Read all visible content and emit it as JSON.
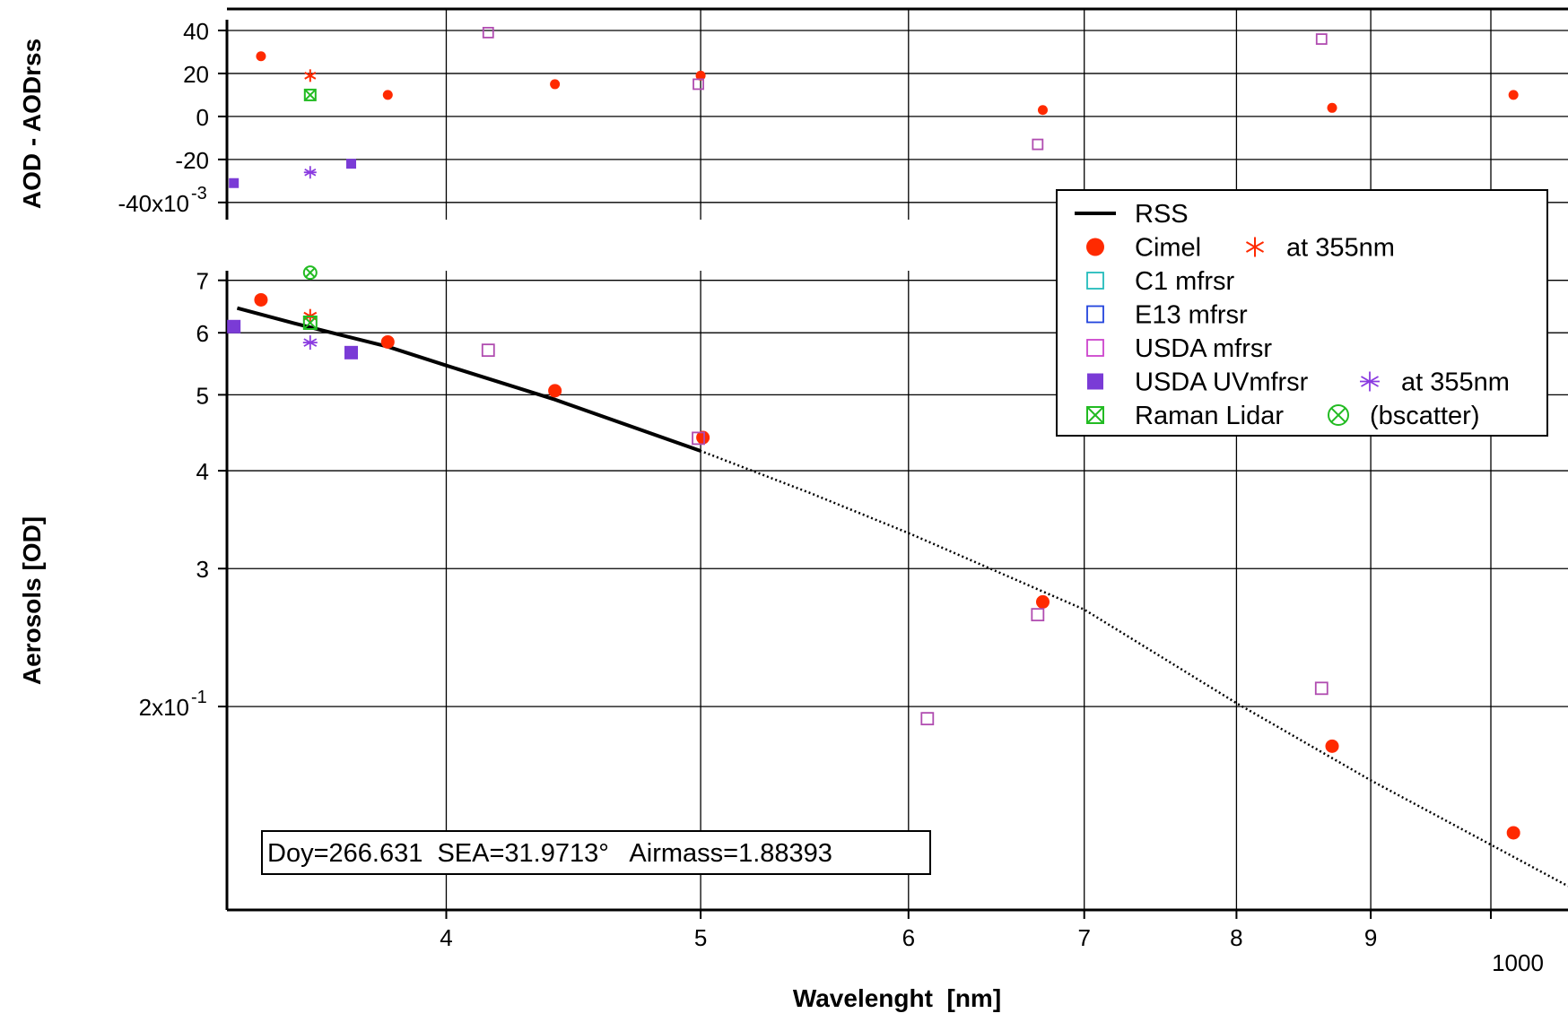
{
  "chart_data": {
    "type": "scatter",
    "x_scale": "log",
    "x_label": "Wavelenght  [nm]",
    "x_ticks": [
      {
        "value": 400,
        "label": "4"
      },
      {
        "value": 500,
        "label": "5"
      },
      {
        "value": 600,
        "label": "6"
      },
      {
        "value": 700,
        "label": "7"
      },
      {
        "value": 800,
        "label": "8"
      },
      {
        "value": 900,
        "label": "9"
      },
      {
        "value": 1000,
        "label": "1000"
      }
    ],
    "x_range": [
      330,
      1070
    ],
    "grid": true,
    "panels": [
      {
        "id": "residual",
        "y_label": "AOD - AODrss",
        "y_scale": "linear",
        "y_range": [
          -0.048,
          0.05
        ],
        "y_ticks": [
          {
            "value": 0.04,
            "label": "40"
          },
          {
            "value": 0.02,
            "label": "20"
          },
          {
            "value": 0,
            "label": "0"
          },
          {
            "value": -0.02,
            "label": "-20"
          },
          {
            "value": -0.04,
            "label": "-40x10",
            "sup": "-3"
          }
        ],
        "series": [
          {
            "name": "Cimel",
            "marker": "filled-circle",
            "color": "#ff2a00",
            "points": [
              [
                340,
                0.028
              ],
              [
                380,
                0.01
              ],
              [
                440,
                0.015
              ],
              [
                500,
                0.019
              ],
              [
                675,
                0.003
              ],
              [
                870,
                0.004
              ],
              [
                1020,
                0.01
              ]
            ]
          },
          {
            "name": "at 355nm",
            "marker": "asterisk",
            "color": "#ff2a00",
            "points": [
              [
                355,
                0.019
              ]
            ]
          },
          {
            "name": "USDA mfrsr",
            "marker": "open-square",
            "color": "#b04cb0",
            "points": [
              [
                415,
                0.039
              ],
              [
                499,
                0.015
              ],
              [
                672,
                -0.013
              ],
              [
                862,
                0.036
              ]
            ]
          },
          {
            "name": "USDA UVmfrsr",
            "marker": "filled-square",
            "color": "#7a3bd6",
            "points": [
              [
                332,
                -0.031
              ],
              [
                368,
                -0.022
              ]
            ]
          },
          {
            "name": "at 355nm",
            "marker": "star",
            "color": "#8a3be0",
            "points": [
              [
                355,
                -0.026
              ]
            ]
          },
          {
            "name": "Raman Lidar",
            "marker": "boxed-x",
            "color": "#22bb22",
            "points": [
              [
                355,
                0.01
              ]
            ]
          }
        ]
      },
      {
        "id": "main",
        "y_label": "Aerosols [OD]",
        "y_scale": "log",
        "y_range": [
          0.11,
          0.72
        ],
        "y_ticks": [
          {
            "value": 0.7,
            "label": "7"
          },
          {
            "value": 0.6,
            "label": "6"
          },
          {
            "value": 0.5,
            "label": "5"
          },
          {
            "value": 0.4,
            "label": "4"
          },
          {
            "value": 0.3,
            "label": "3"
          },
          {
            "value": 0.2,
            "label": "2x10",
            "sup": "-1"
          }
        ],
        "series": [
          {
            "name": "RSS",
            "type": "line",
            "color": "#000000",
            "points": [
              [
                333,
                0.645
              ],
              [
                350,
                0.617
              ],
              [
                380,
                0.576
              ],
              [
                400,
                0.545
              ],
              [
                440,
                0.493
              ],
              [
                500,
                0.424
              ],
              [
                550,
                0.375
              ],
              [
                600,
                0.333
              ],
              [
                700,
                0.266
              ],
              [
                800,
                0.202
              ],
              [
                900,
                0.161
              ],
              [
                1070,
                0.118
              ]
            ]
          },
          {
            "name": "Cimel",
            "marker": "filled-circle",
            "color": "#ff2a00",
            "points": [
              [
                340,
                0.661
              ],
              [
                380,
                0.584
              ],
              [
                440,
                0.506
              ],
              [
                501,
                0.441
              ],
              [
                675,
                0.272
              ],
              [
                870,
                0.178
              ],
              [
                1020,
                0.138
              ]
            ]
          },
          {
            "name": "at 355nm",
            "marker": "asterisk",
            "color": "#ff2a00",
            "points": [
              [
                355,
                0.63
              ]
            ]
          },
          {
            "name": "USDA mfrsr",
            "marker": "open-square",
            "color": "#b04cb0",
            "points": [
              [
                415,
                0.57
              ],
              [
                499,
                0.44
              ],
              [
                610,
                0.193
              ],
              [
                672,
                0.262
              ],
              [
                862,
                0.211
              ]
            ]
          },
          {
            "name": "USDA UVmfrsr",
            "marker": "filled-square",
            "color": "#7a3bd6",
            "points": [
              [
                332,
                0.611
              ],
              [
                368,
                0.566
              ]
            ]
          },
          {
            "name": "at 355nm",
            "marker": "star",
            "color": "#8a3be0",
            "points": [
              [
                355,
                0.583
              ]
            ]
          },
          {
            "name": "Raman Lidar",
            "marker": "boxed-x",
            "color": "#22bb22",
            "points": [
              [
                355,
                0.618
              ]
            ]
          },
          {
            "name": "(bscatter)",
            "marker": "circle-x",
            "color": "#22bb22",
            "points": [
              [
                355,
                0.716
              ]
            ]
          }
        ]
      }
    ],
    "legend": {
      "placement": "upper-right",
      "entries": [
        {
          "marker": "line",
          "color": "#000000",
          "label": "RSS"
        },
        {
          "marker": "filled-circle",
          "color": "#ff2a00",
          "label": "Cimel",
          "marker2": "asterisk",
          "color2": "#ff2a00",
          "label2": "at 355nm"
        },
        {
          "marker": "open-square",
          "color": "#22bbbb",
          "label": "C1 mfrsr"
        },
        {
          "marker": "open-square",
          "color": "#2244dd",
          "label": "E13 mfrsr"
        },
        {
          "marker": "open-square",
          "color": "#cc44cc",
          "label": "USDA mfrsr"
        },
        {
          "marker": "filled-square",
          "color": "#7a3bd6",
          "label": "USDA UVmfrsr",
          "marker2": "star",
          "color2": "#8a3be0",
          "label2": "at 355nm"
        },
        {
          "marker": "boxed-x",
          "color": "#22bb22",
          "label": "Raman Lidar",
          "marker2": "circle-x",
          "color2": "#22bb22",
          "label2": "(bscatter)"
        }
      ]
    },
    "annotation": "Doy=266.631  SEA=31.9713°   Airmass=1.88393"
  }
}
